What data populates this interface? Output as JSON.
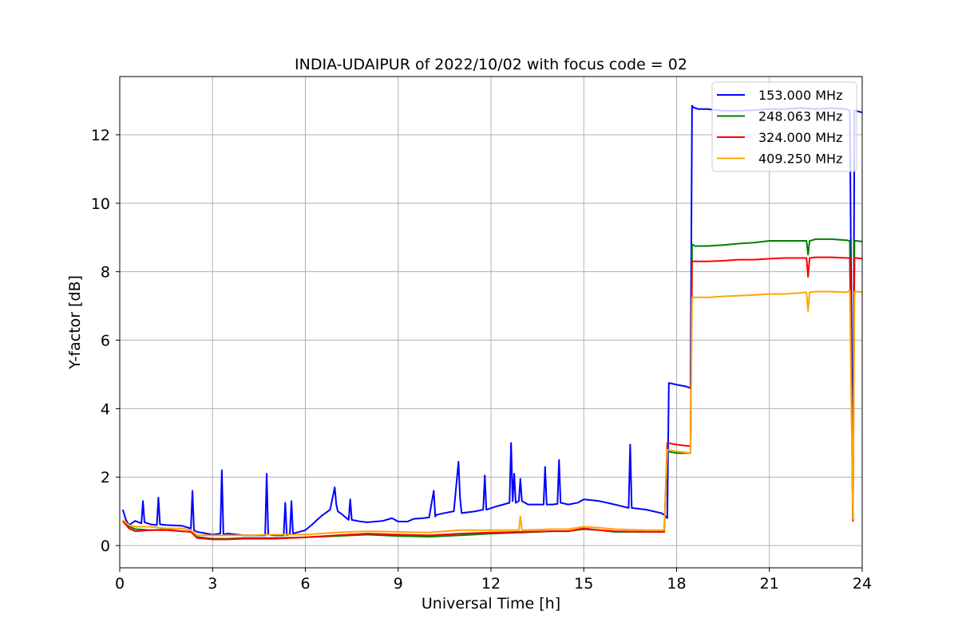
{
  "chart_data": {
    "type": "line",
    "title": "INDIA-UDAIPUR of 2022/10/02 with focus code = 02",
    "xlabel": "Universal Time [h]",
    "ylabel": "Y-factor [dB]",
    "xlim": [
      0,
      24
    ],
    "ylim": [
      -0.65,
      13.7
    ],
    "xticks": [
      0,
      3,
      6,
      9,
      12,
      15,
      18,
      21,
      24
    ],
    "yticks": [
      0,
      2,
      4,
      6,
      8,
      10,
      12
    ],
    "grid": true,
    "legend_position": "top-right",
    "series": [
      {
        "name": "153.000 MHz",
        "color": "#0000ff",
        "x": [
          0.1,
          0.2,
          0.3,
          0.5,
          0.7,
          0.75,
          0.8,
          1.0,
          1.2,
          1.25,
          1.3,
          1.5,
          2.0,
          2.3,
          2.35,
          2.4,
          2.5,
          3.0,
          3.25,
          3.3,
          3.35,
          3.5,
          4.0,
          4.5,
          4.7,
          4.75,
          4.8,
          5.0,
          5.3,
          5.35,
          5.4,
          5.5,
          5.55,
          5.6,
          5.8,
          6.0,
          6.2,
          6.5,
          6.8,
          6.95,
          7.0,
          7.05,
          7.2,
          7.4,
          7.45,
          7.5,
          7.8,
          8.0,
          8.5,
          8.8,
          9.0,
          9.3,
          9.5,
          9.8,
          10.0,
          10.15,
          10.2,
          10.25,
          10.5,
          10.8,
          10.95,
          11.0,
          11.05,
          11.5,
          11.75,
          11.8,
          11.85,
          12.2,
          12.6,
          12.65,
          12.7,
          12.75,
          12.8,
          12.9,
          12.95,
          13.0,
          13.2,
          13.5,
          13.7,
          13.75,
          13.8,
          14.0,
          14.15,
          14.2,
          14.25,
          14.5,
          14.8,
          15.0,
          15.5,
          16.0,
          16.45,
          16.5,
          16.55,
          17.0,
          17.5,
          17.6,
          17.7,
          17.75,
          18.0,
          18.3,
          18.45,
          18.5,
          18.55,
          18.7,
          19.0,
          19.5,
          20.0,
          20.5,
          21.0,
          21.5,
          22.0,
          22.5,
          23.0,
          23.5,
          23.6,
          23.7,
          23.75,
          23.8,
          24.0
        ],
        "y": [
          1.05,
          0.75,
          0.6,
          0.72,
          0.65,
          1.3,
          0.68,
          0.62,
          0.6,
          1.4,
          0.62,
          0.6,
          0.58,
          0.5,
          1.6,
          0.45,
          0.4,
          0.32,
          0.35,
          2.2,
          0.33,
          0.35,
          0.3,
          0.3,
          0.3,
          2.1,
          0.32,
          0.3,
          0.3,
          1.25,
          0.3,
          0.35,
          1.3,
          0.35,
          0.4,
          0.45,
          0.6,
          0.85,
          1.05,
          1.7,
          1.2,
          1.0,
          0.9,
          0.75,
          1.35,
          0.75,
          0.7,
          0.68,
          0.72,
          0.8,
          0.7,
          0.7,
          0.78,
          0.8,
          0.82,
          1.6,
          0.85,
          0.9,
          0.95,
          1.0,
          2.45,
          1.4,
          0.95,
          1.0,
          1.05,
          2.05,
          1.05,
          1.15,
          1.25,
          3.0,
          1.3,
          2.1,
          1.25,
          1.3,
          1.95,
          1.3,
          1.2,
          1.2,
          1.2,
          2.3,
          1.2,
          1.2,
          1.22,
          2.5,
          1.25,
          1.2,
          1.25,
          1.35,
          1.3,
          1.2,
          1.1,
          2.95,
          1.1,
          1.05,
          0.95,
          0.9,
          0.8,
          4.75,
          4.7,
          4.65,
          4.6,
          12.85,
          12.8,
          12.75,
          12.75,
          12.7,
          12.7,
          12.72,
          12.75,
          12.75,
          12.78,
          12.75,
          12.78,
          12.75,
          12.7,
          0.85,
          12.7,
          12.7,
          12.65
        ]
      },
      {
        "name": "248.063 MHz",
        "color": "#008000",
        "x": [
          0.1,
          0.3,
          0.5,
          1.0,
          1.5,
          2.0,
          2.3,
          2.5,
          3.0,
          3.5,
          4.0,
          5.0,
          6.0,
          7.0,
          8.0,
          9.0,
          10.0,
          11.0,
          12.0,
          13.0,
          14.0,
          14.5,
          15.0,
          15.5,
          16.0,
          17.0,
          17.6,
          17.7,
          18.0,
          18.45,
          18.5,
          18.6,
          19.0,
          19.5,
          20.0,
          20.5,
          21.0,
          21.5,
          22.0,
          22.2,
          22.25,
          22.3,
          22.5,
          23.0,
          23.5,
          23.6,
          23.7,
          23.75,
          23.8,
          24.0
        ],
        "y": [
          0.7,
          0.55,
          0.48,
          0.45,
          0.47,
          0.42,
          0.4,
          0.25,
          0.2,
          0.2,
          0.22,
          0.22,
          0.24,
          0.28,
          0.32,
          0.28,
          0.26,
          0.3,
          0.35,
          0.38,
          0.42,
          0.42,
          0.48,
          0.45,
          0.4,
          0.4,
          0.4,
          2.75,
          2.7,
          2.7,
          8.8,
          8.75,
          8.75,
          8.78,
          8.82,
          8.85,
          8.9,
          8.9,
          8.9,
          8.9,
          8.5,
          8.9,
          8.95,
          8.95,
          8.92,
          8.9,
          0.75,
          8.9,
          8.9,
          8.88
        ]
      },
      {
        "name": "324.000 MHz",
        "color": "#ff0000",
        "x": [
          0.1,
          0.3,
          0.5,
          1.0,
          1.5,
          2.0,
          2.3,
          2.5,
          3.0,
          3.5,
          4.0,
          5.0,
          6.0,
          7.0,
          8.0,
          9.0,
          10.0,
          11.0,
          12.0,
          13.0,
          14.0,
          14.5,
          15.0,
          15.5,
          16.0,
          17.0,
          17.6,
          17.7,
          18.0,
          18.45,
          18.5,
          18.6,
          19.0,
          19.5,
          20.0,
          20.5,
          21.0,
          21.5,
          22.0,
          22.2,
          22.25,
          22.3,
          22.5,
          23.0,
          23.5,
          23.6,
          23.7,
          23.75,
          23.8,
          24.0
        ],
        "y": [
          0.72,
          0.5,
          0.42,
          0.45,
          0.45,
          0.42,
          0.4,
          0.22,
          0.18,
          0.18,
          0.2,
          0.2,
          0.24,
          0.3,
          0.35,
          0.32,
          0.3,
          0.35,
          0.38,
          0.4,
          0.42,
          0.42,
          0.5,
          0.45,
          0.42,
          0.4,
          0.4,
          3.0,
          2.95,
          2.9,
          8.3,
          8.3,
          8.3,
          8.32,
          8.35,
          8.35,
          8.38,
          8.4,
          8.4,
          8.4,
          7.85,
          8.4,
          8.42,
          8.42,
          8.4,
          8.4,
          0.72,
          8.4,
          8.4,
          8.38
        ]
      },
      {
        "name": "409.250 MHz",
        "color": "#ffa500",
        "x": [
          0.1,
          0.3,
          0.5,
          1.0,
          1.5,
          2.0,
          2.3,
          2.5,
          3.0,
          3.5,
          4.0,
          5.0,
          6.0,
          7.0,
          8.0,
          9.0,
          10.0,
          11.0,
          12.0,
          12.9,
          12.95,
          13.0,
          14.0,
          14.5,
          15.0,
          15.5,
          16.0,
          17.0,
          17.6,
          17.7,
          18.0,
          18.45,
          18.5,
          18.6,
          19.0,
          19.5,
          20.0,
          20.5,
          21.0,
          21.5,
          22.0,
          22.2,
          22.25,
          22.3,
          22.5,
          23.0,
          23.5,
          23.6,
          23.7,
          23.75,
          23.8,
          24.0
        ],
        "y": [
          0.75,
          0.6,
          0.55,
          0.55,
          0.5,
          0.5,
          0.45,
          0.3,
          0.3,
          0.3,
          0.3,
          0.32,
          0.32,
          0.38,
          0.42,
          0.4,
          0.38,
          0.45,
          0.45,
          0.45,
          0.85,
          0.45,
          0.48,
          0.48,
          0.55,
          0.52,
          0.48,
          0.45,
          0.45,
          2.8,
          2.75,
          2.7,
          7.25,
          7.25,
          7.25,
          7.28,
          7.3,
          7.32,
          7.35,
          7.35,
          7.38,
          7.4,
          6.85,
          7.4,
          7.42,
          7.42,
          7.4,
          7.45,
          0.78,
          7.42,
          7.42,
          7.4
        ]
      }
    ]
  }
}
